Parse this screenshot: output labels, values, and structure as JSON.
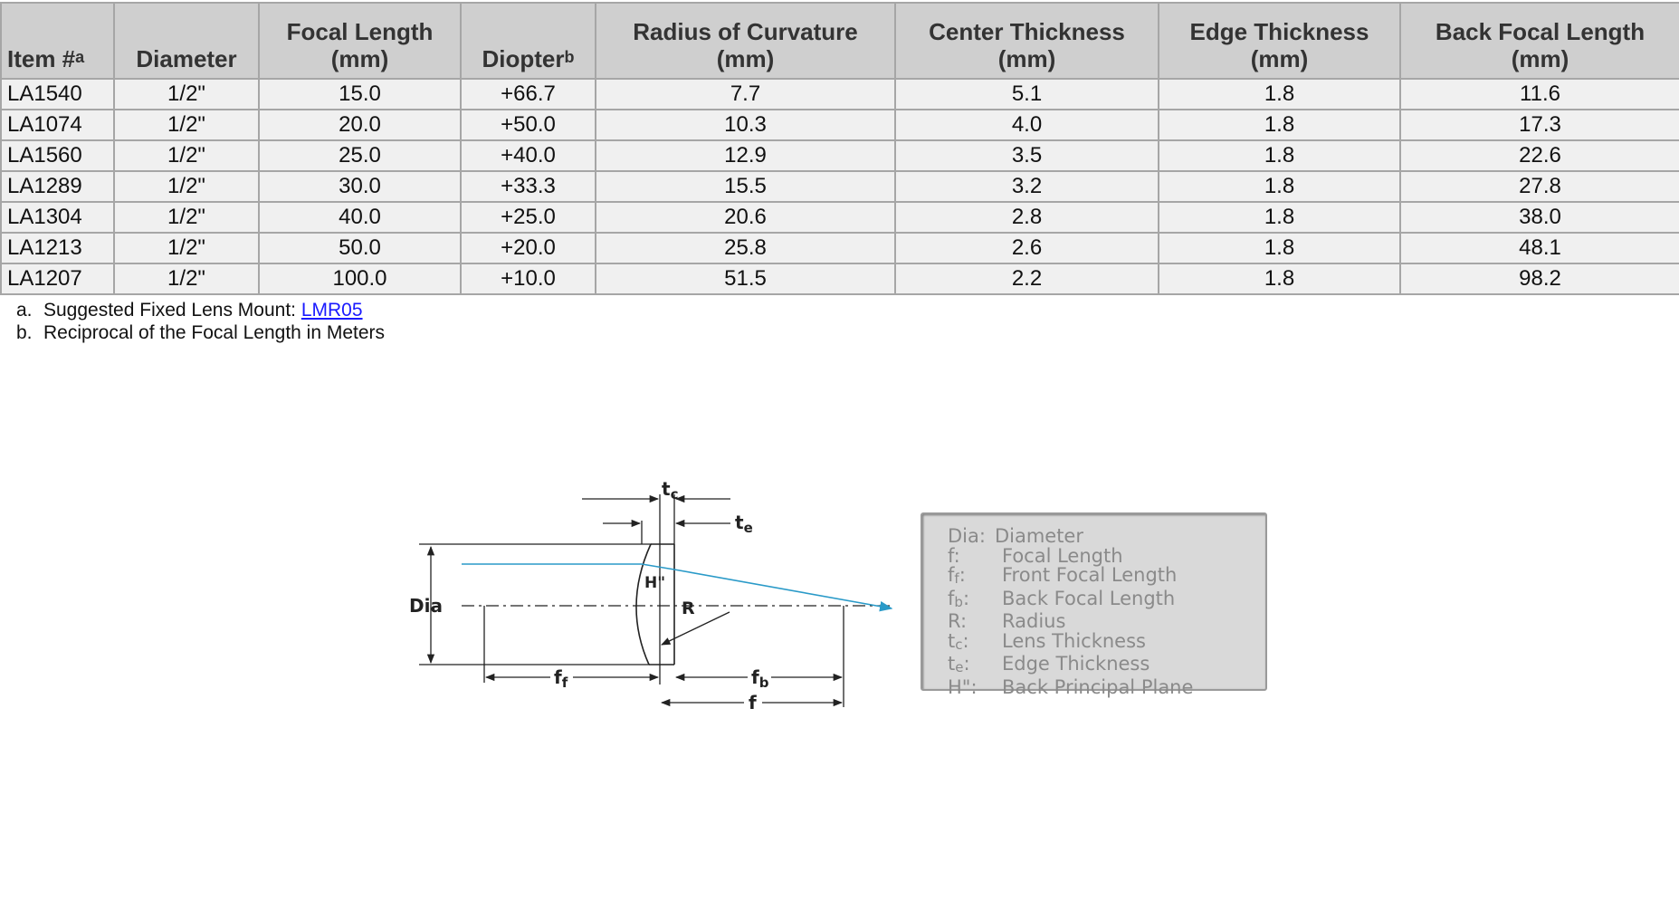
{
  "table": {
    "headers": {
      "item": "Item #",
      "item_sup": "a",
      "diameter": "Diameter",
      "focal_l1": "Focal Length",
      "focal_l2": "(mm)",
      "diopter": "Diopter",
      "diopter_sup": "b",
      "radius_l1": "Radius of Curvature",
      "radius_l2": "(mm)",
      "center_l1": "Center Thickness",
      "center_l2": "(mm)",
      "edge_l1": "Edge Thickness",
      "edge_l2": "(mm)",
      "bfl_l1": "Back Focal Length",
      "bfl_l2": "(mm)"
    },
    "rows": [
      [
        "LA1540",
        "1/2\"",
        "15.0",
        "+66.7",
        "7.7",
        "5.1",
        "1.8",
        "11.6"
      ],
      [
        "LA1074",
        "1/2\"",
        "20.0",
        "+50.0",
        "10.3",
        "4.0",
        "1.8",
        "17.3"
      ],
      [
        "LA1560",
        "1/2\"",
        "25.0",
        "+40.0",
        "12.9",
        "3.5",
        "1.8",
        "22.6"
      ],
      [
        "LA1289",
        "1/2\"",
        "30.0",
        "+33.3",
        "15.5",
        "3.2",
        "1.8",
        "27.8"
      ],
      [
        "LA1304",
        "1/2\"",
        "40.0",
        "+25.0",
        "20.6",
        "2.8",
        "1.8",
        "38.0"
      ],
      [
        "LA1213",
        "1/2\"",
        "50.0",
        "+20.0",
        "25.8",
        "2.6",
        "1.8",
        "48.1"
      ],
      [
        "LA1207",
        "1/2\"",
        "100.0",
        "+10.0",
        "51.5",
        "2.2",
        "1.8",
        "98.2"
      ]
    ]
  },
  "notes": {
    "a_marker": "a.",
    "a_text": "Suggested Fixed Lens Mount: ",
    "a_link": "LMR05",
    "b_marker": "b.",
    "b_text": "Reciprocal of the Focal Length in Meters"
  },
  "diagram": {
    "dia": "Dia",
    "h": "H\"",
    "r": "R",
    "tc": "t",
    "tc_sub": "c",
    "te": "t",
    "te_sub": "e",
    "ff": "f",
    "ff_sub": "f",
    "fb": "f",
    "fb_sub": "b",
    "f": "f",
    "ray_color": "#2a9ac8",
    "line_color": "#222222"
  },
  "legend": {
    "dia_key": "Dia:",
    "dia_val": "Diameter",
    "f_key": "f:",
    "f_val": "Focal Length",
    "ff_key": "f",
    "ff_sub": "f",
    "ff_val": "Front Focal Length",
    "fb_key": "f",
    "fb_sub": "b",
    "fb_val": "Back Focal Length",
    "r_key": "R:",
    "r_val": "Radius",
    "tc_key": "t",
    "tc_sub": "c",
    "tc_val": "Lens Thickness",
    "te_key": "t",
    "te_sub": "e",
    "te_val": "Edge Thickness",
    "h_key": "H\":",
    "h_val": "Back Principal Plane"
  }
}
